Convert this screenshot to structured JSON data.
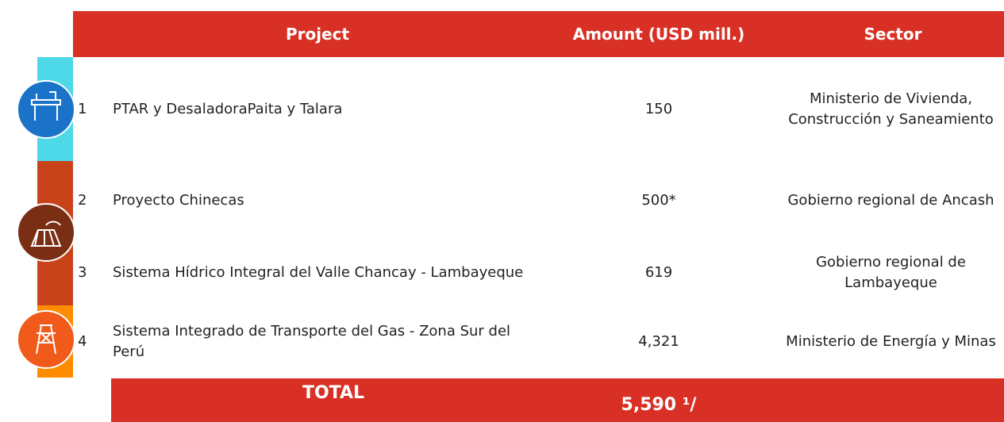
{
  "table": {
    "header": [
      "Project",
      "Amount (USD mill.)",
      "Sector"
    ],
    "rows": [
      [
        "1",
        "PTAR y DesaladoraPaita y Talara",
        "150",
        "Ministerio de Vivienda, Construcción y Saneamiento"
      ],
      [
        "2",
        "Proyecto Chinecas",
        "500*",
        "Gobierno regional de Ancash"
      ],
      [
        "3",
        "Sistema Hídrico Integral del Valle Chancay - Lambayeque",
        "619",
        "Gobierno regional de Lambayeque"
      ],
      [
        "4",
        "Sistema Integrado de Transporte del Gas - Zona Sur del Perú",
        "4,321",
        "Ministerio de Energía y Minas"
      ]
    ],
    "total": {
      "label": "TOTAL",
      "value": "5,590 ¹/"
    }
  }
}
